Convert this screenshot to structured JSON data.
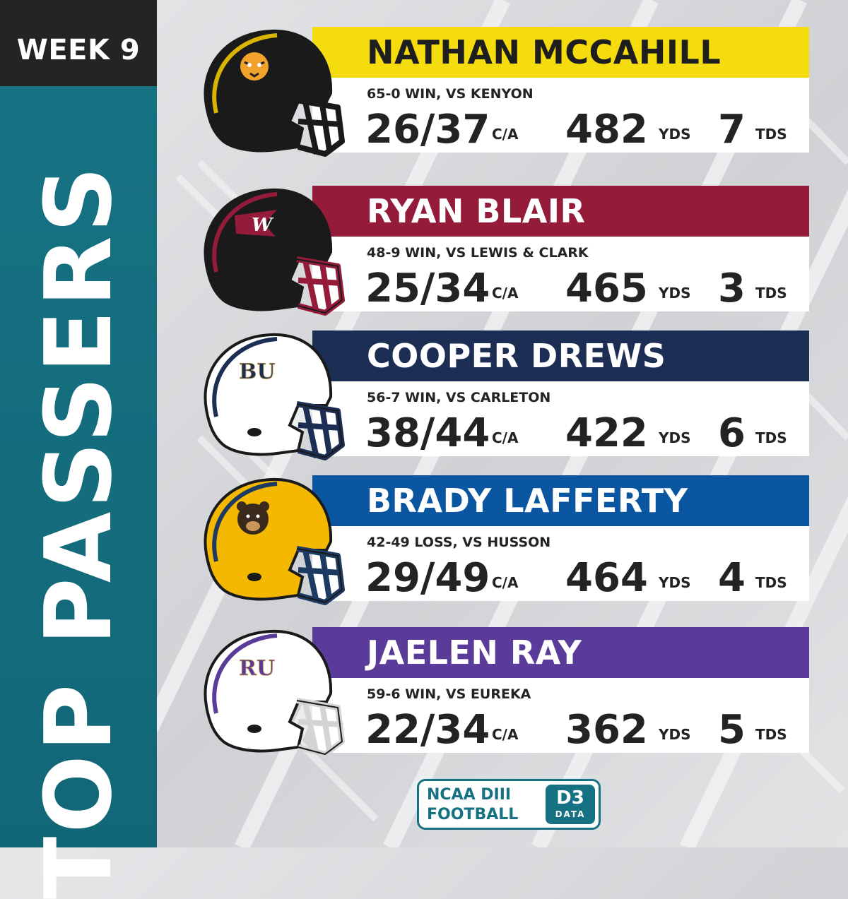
{
  "header": {
    "week": "WEEK 9",
    "title": "TOP PASSERS"
  },
  "units": {
    "ca": "C/A",
    "yds": "YDS",
    "tds": "TDS"
  },
  "passers": [
    {
      "name": "NATHAN MCCAHILL",
      "result": "65-0 WIN, VS KENYON",
      "ca": "26/37",
      "yds": "482",
      "tds": "7",
      "bar_color": "#f4dc0e",
      "name_color": "#1e1e1e",
      "shell_color": "#1a1a1a",
      "stripe_color": "#d9b400",
      "mask_color": "#1a1a1a",
      "logo": "tiger-logo-icon"
    },
    {
      "name": "RYAN BLAIR",
      "result": "48-9 WIN, VS LEWIS & CLARK",
      "ca": "25/34",
      "yds": "465",
      "tds": "3",
      "bar_color": "#941c3a",
      "name_color": "#ffffff",
      "shell_color": "#1a1a1a",
      "stripe_color": "#941c3a",
      "mask_color": "#941c3a",
      "logo": "pennant-w-logo-icon"
    },
    {
      "name": "COOPER DREWS",
      "result": "56-7 WIN, VS CARLETON",
      "ca": "38/44",
      "yds": "422",
      "tds": "6",
      "bar_color": "#1d2e55",
      "name_color": "#ffffff",
      "shell_color": "#ffffff",
      "stripe_color": "#1d2e55",
      "mask_color": "#1d2e55",
      "logo": "bu-logo-icon"
    },
    {
      "name": "BRADY LAFFERTY",
      "result": "42-49 LOSS, VS HUSSON",
      "ca": "29/49",
      "yds": "464",
      "tds": "4",
      "bar_color": "#0a56a0",
      "name_color": "#ffffff",
      "shell_color": "#f5b800",
      "stripe_color": "#1d3a63",
      "mask_color": "#1d3a63",
      "logo": "bear-logo-icon"
    },
    {
      "name": "JAELEN RAY",
      "result": "59-6 WIN, VS EUREKA",
      "ca": "22/34",
      "yds": "362",
      "tds": "5",
      "bar_color": "#5a3b99",
      "name_color": "#ffffff",
      "shell_color": "#ffffff",
      "stripe_color": "#5a3b99",
      "mask_color": "#d4d4d4",
      "logo": "ru-logo-icon"
    }
  ],
  "brand": {
    "line1": "NCAA DIII",
    "line2": "FOOTBALL",
    "badge_top": "D3",
    "badge_bottom": "DATA"
  }
}
